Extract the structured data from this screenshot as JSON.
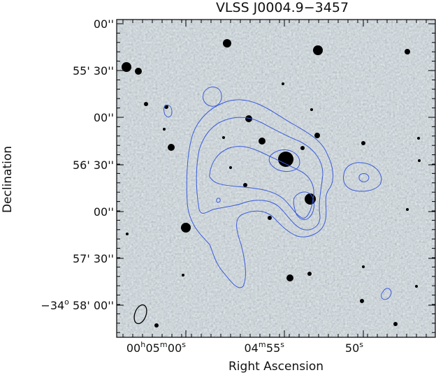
{
  "figure": {
    "title": "VLSS J0004.9−3457",
    "xlabel": "Right Ascension",
    "ylabel": "Declination"
  },
  "chart_data": {
    "type": "heatmap",
    "title": "VLSS J0004.9−3457",
    "xlabel": "Right Ascension",
    "ylabel": "Declination",
    "grid": false,
    "y_ticks": [
      {
        "prefix": "",
        "main": "00''",
        "pre_sup": "",
        "deg_sup": "",
        "val": 0
      },
      {
        "prefix": "",
        "main": "55' 30''",
        "pre_sup": "",
        "deg_sup": "",
        "val": 1
      },
      {
        "prefix": "",
        "main": "00''",
        "pre_sup": "",
        "deg_sup": "",
        "val": 2
      },
      {
        "prefix": "",
        "main": "56' 30''",
        "pre_sup": "",
        "deg_sup": "",
        "val": 3
      },
      {
        "prefix": "",
        "main": "00''",
        "pre_sup": "",
        "deg_sup": "",
        "val": 4
      },
      {
        "prefix": "",
        "main": "57' 30''",
        "pre_sup": "",
        "deg_sup": "",
        "val": 5
      },
      {
        "prefix": "−34",
        "deg_sup": "o",
        "main": " 58' 00''",
        "val": 6
      }
    ],
    "x_ticks": [
      {
        "parts": [
          [
            "00",
            "h"
          ],
          [
            " 05",
            "m"
          ],
          [
            " 00",
            "s"
          ]
        ],
        "val": 0
      },
      {
        "parts": [
          [
            "04",
            "m"
          ],
          [
            " 55",
            "s"
          ]
        ],
        "val": 1
      },
      {
        "parts": [
          [
            "50",
            "s"
          ]
        ],
        "val": 2
      }
    ],
    "image": {
      "colormap": "grayscale",
      "background": "#9caab0"
    },
    "contours": {
      "color": "#3b5bdb",
      "levels": 4
    },
    "beam": {
      "shape": "ellipse",
      "color": "#000000"
    }
  }
}
